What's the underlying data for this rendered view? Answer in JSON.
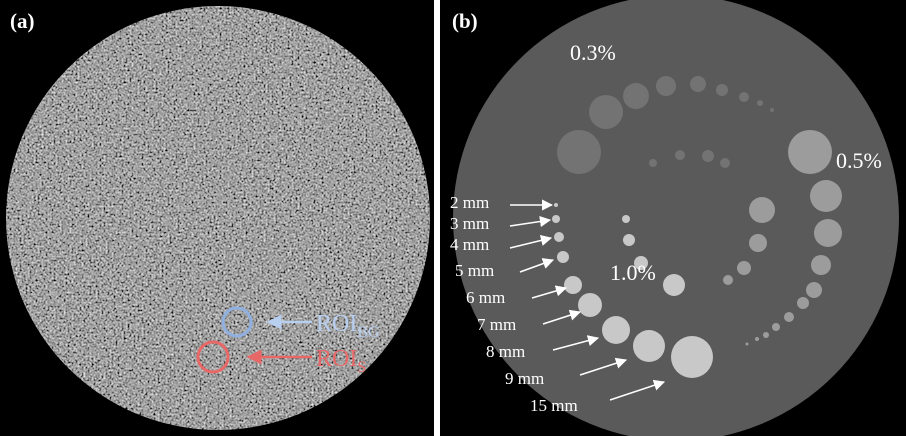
{
  "panels": [
    {
      "label": "(a)",
      "annotations": [
        {
          "text": "ROI",
          "subscript": "BG"
        },
        {
          "text": "ROI",
          "subscript": "S"
        }
      ]
    },
    {
      "label": "(b)",
      "contrast_labels": [
        "0.3%",
        "0.5%",
        "1.0%"
      ],
      "size_labels": [
        "2 mm",
        "3 mm",
        "4 mm",
        "5 mm",
        "6 mm",
        "7 mm",
        "8 mm",
        "9 mm",
        "15 mm"
      ]
    }
  ]
}
